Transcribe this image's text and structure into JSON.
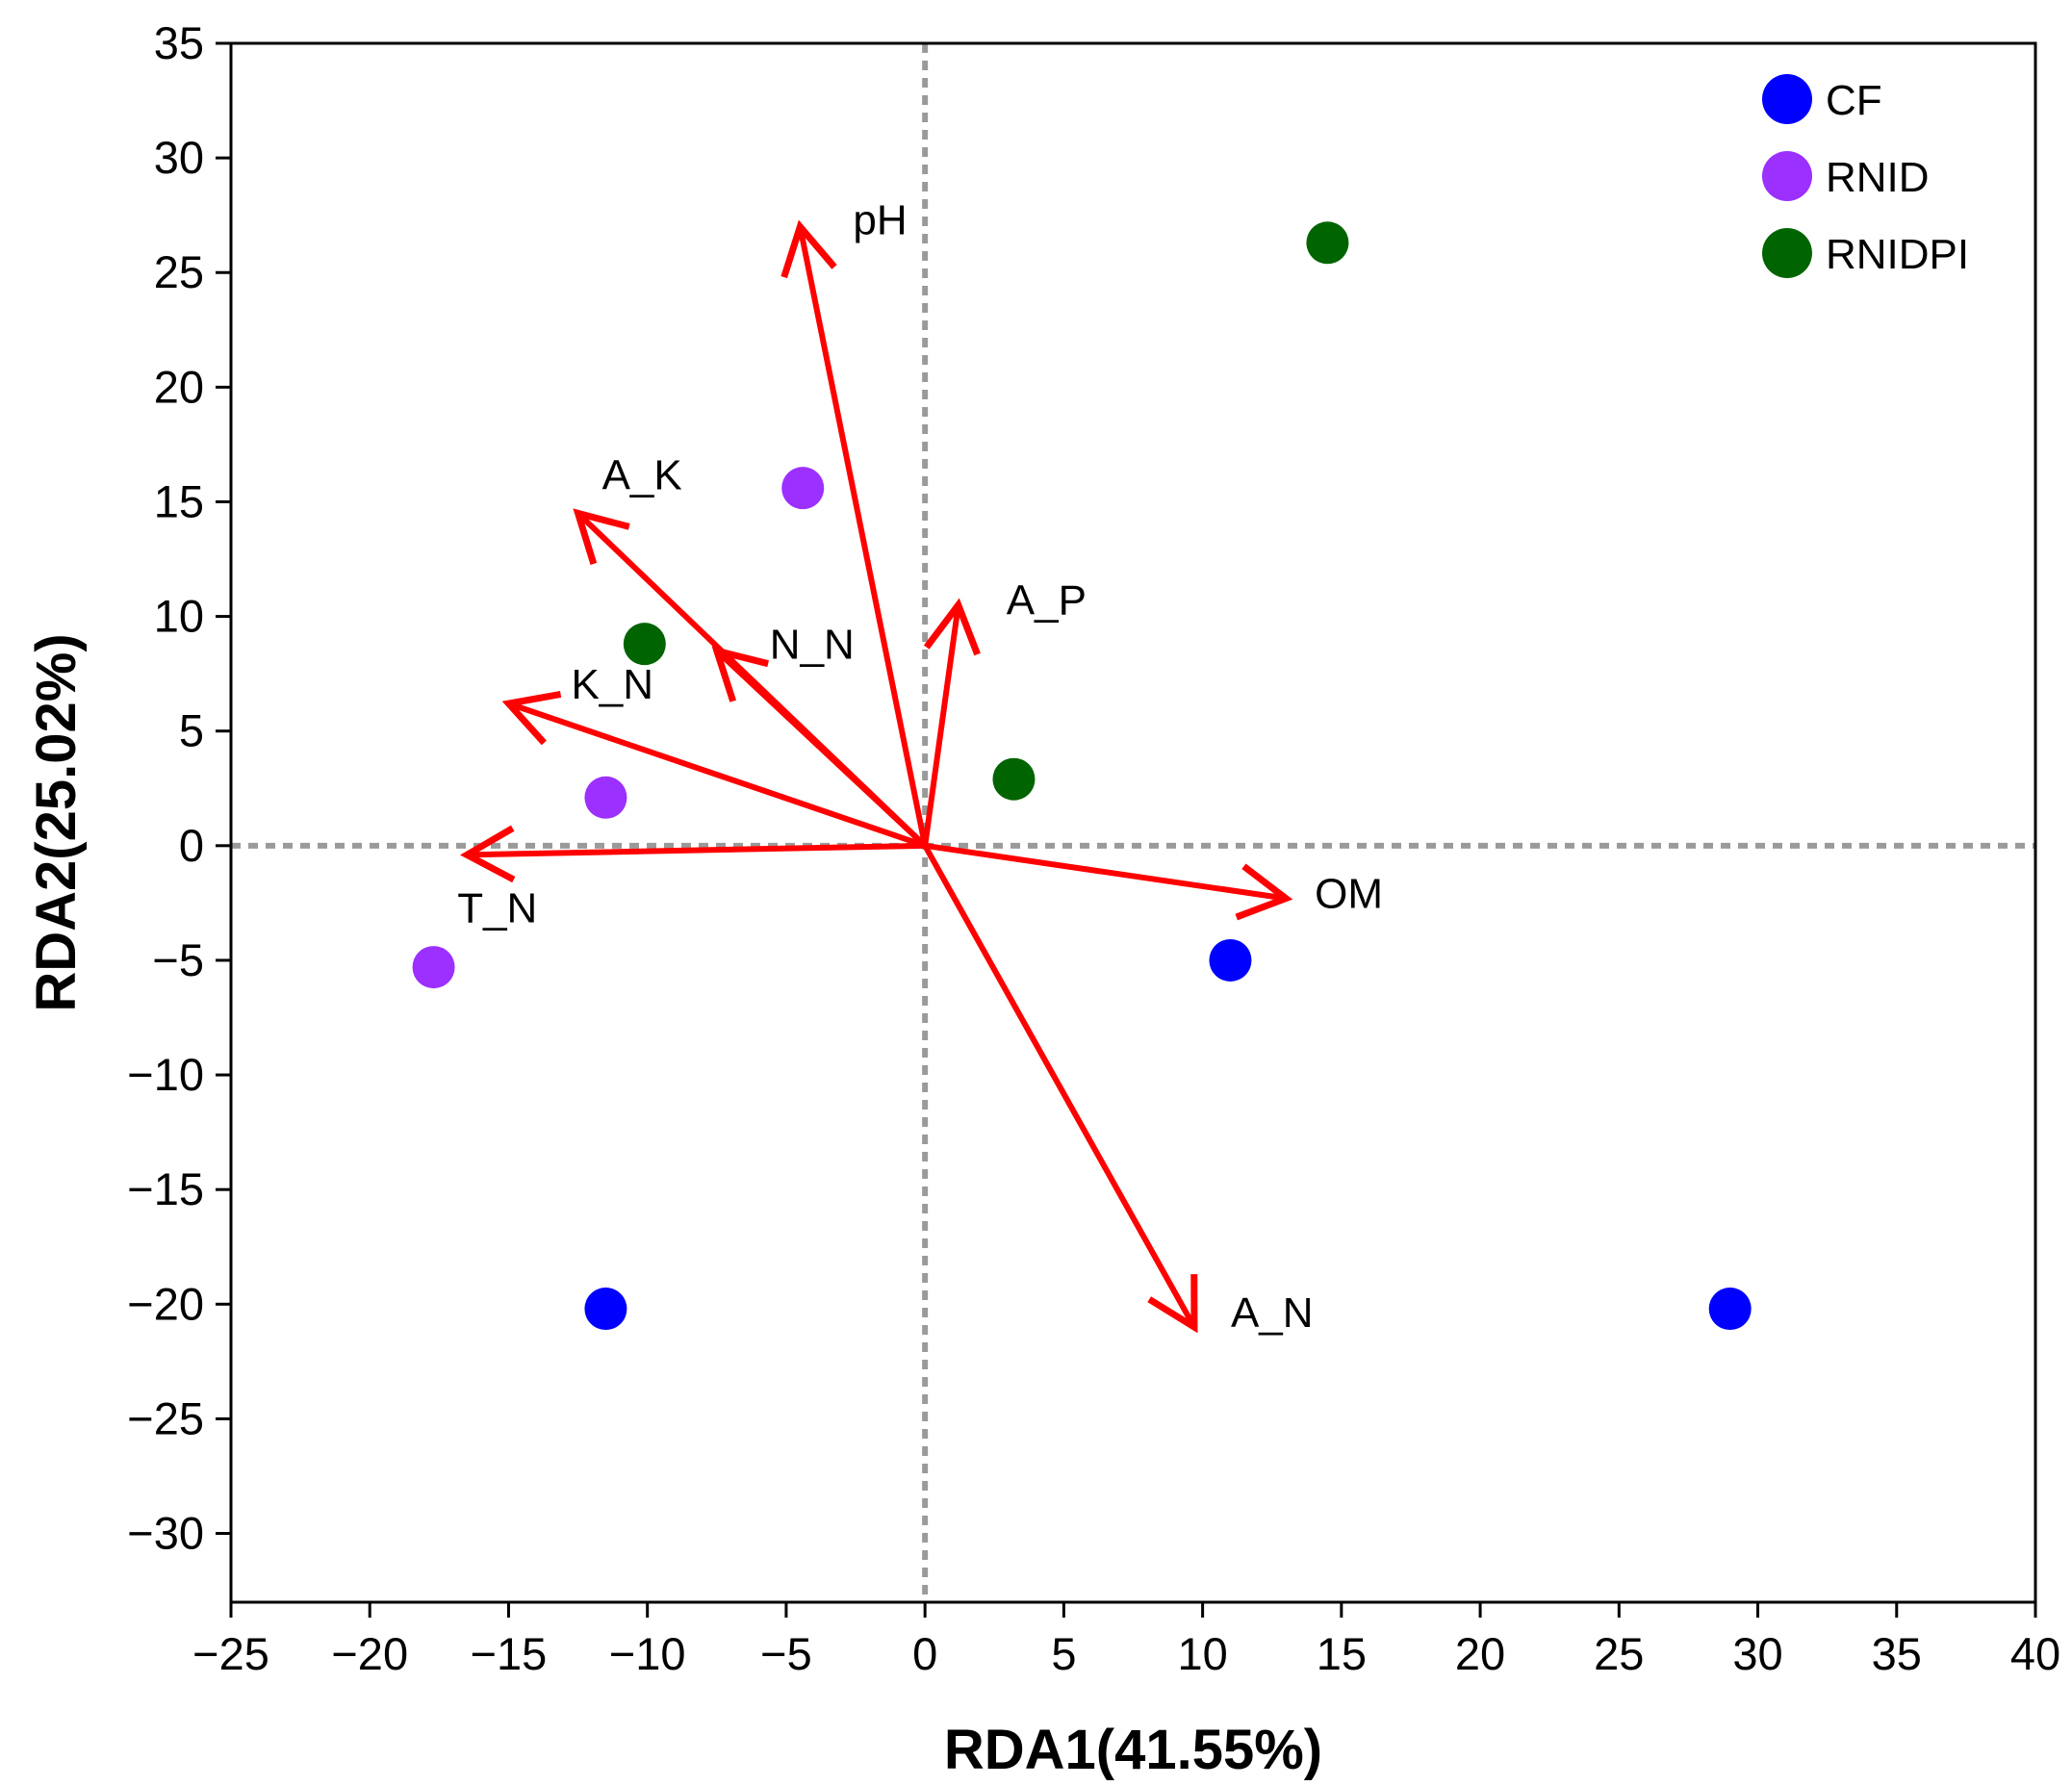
{
  "chart_data": {
    "type": "scatter",
    "xlabel": "RDA1(41.55%)",
    "ylabel": "RDA2(25.02%)",
    "xlim": [
      -25,
      40
    ],
    "ylim": [
      -33,
      35
    ],
    "xticks": [
      -25,
      -20,
      -15,
      -10,
      -5,
      0,
      5,
      10,
      15,
      20,
      25,
      30,
      35,
      40
    ],
    "yticks": [
      35,
      30,
      25,
      20,
      15,
      10,
      5,
      0,
      -5,
      -10,
      -15,
      -20,
      -25,
      -30
    ],
    "xtick_labels": [
      "−25",
      "−20",
      "−15",
      "−10",
      "−5",
      "0",
      "5",
      "10",
      "15",
      "20",
      "25",
      "30",
      "35",
      "40"
    ],
    "ytick_labels": [
      "35",
      "30",
      "25",
      "20",
      "15",
      "10",
      "5",
      "0",
      "−5",
      "−10",
      "−15",
      "−20",
      "−25",
      "−30"
    ],
    "grid": false,
    "reference_lines": {
      "x": 0,
      "y": 0,
      "style": "dotted",
      "color": "#9a9a9a"
    },
    "legend_position": "top-right",
    "series": [
      {
        "name": "CF",
        "color": "#0000ff",
        "points": [
          [
            11.0,
            -5.0
          ],
          [
            -11.5,
            -20.2
          ],
          [
            29.0,
            -20.2
          ]
        ]
      },
      {
        "name": "RNID",
        "color": "#9b30ff",
        "points": [
          [
            -4.4,
            15.6
          ],
          [
            -11.5,
            2.1
          ],
          [
            -17.7,
            -5.3
          ]
        ]
      },
      {
        "name": "RNIDPI",
        "color": "#006400",
        "points": [
          [
            14.5,
            26.3
          ],
          [
            -10.1,
            8.8
          ],
          [
            3.2,
            2.9
          ]
        ]
      }
    ],
    "vectors": {
      "color": "#ff0000",
      "items": [
        {
          "label": "pH",
          "end": [
            -4.5,
            27
          ]
        },
        {
          "label": "A_K",
          "end": [
            -12.5,
            14.5
          ]
        },
        {
          "label": "N_N",
          "end": [
            -7.5,
            8.5
          ]
        },
        {
          "label": "A_P",
          "end": [
            1.2,
            10.5
          ]
        },
        {
          "label": "K_N",
          "end": [
            -15,
            6.2
          ]
        },
        {
          "label": "T_N",
          "end": [
            -16.5,
            -0.4
          ]
        },
        {
          "label": "OM",
          "end": [
            13,
            -2.3
          ]
        },
        {
          "label": "A_N",
          "end": [
            9.7,
            -21
          ]
        }
      ]
    }
  }
}
